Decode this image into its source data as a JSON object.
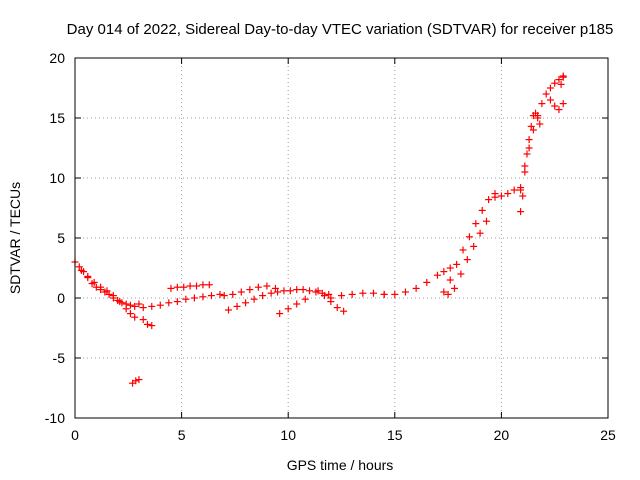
{
  "chart_data": {
    "type": "scatter",
    "title": "Day 014 of 2022, Sidereal Day-to-day VTEC variation (SDTVAR) for receiver p185",
    "xlabel": "GPS time / hours",
    "ylabel": "SDTVAR / TECUs",
    "xlim": [
      0,
      25
    ],
    "ylim": [
      -10,
      20
    ],
    "xticks": [
      0,
      5,
      10,
      15,
      20,
      25
    ],
    "yticks": [
      -10,
      -5,
      0,
      5,
      10,
      15,
      20
    ],
    "xtick_labels": [
      "0",
      "5",
      "10",
      "15",
      "20",
      "25"
    ],
    "ytick_labels": [
      "-10",
      "-5",
      "0",
      "5",
      "10",
      "15",
      "20"
    ],
    "grid": true,
    "marker": "plus",
    "color": "#ff0000",
    "series": [
      {
        "name": "SDTVAR",
        "x": [
          0.0,
          0.2,
          0.4,
          0.6,
          0.8,
          1.0,
          1.2,
          1.4,
          1.6,
          1.8,
          2.0,
          2.2,
          2.4,
          2.6,
          2.8,
          3.0,
          0.3,
          0.6,
          0.9,
          1.2,
          1.5,
          1.8,
          2.1,
          2.4,
          2.6,
          2.8,
          3.2,
          3.4,
          3.6,
          2.7,
          2.85,
          3.0,
          3.2,
          3.6,
          4.0,
          4.4,
          4.8,
          5.2,
          5.6,
          6.0,
          6.4,
          6.8,
          4.5,
          4.8,
          5.1,
          5.4,
          5.7,
          6.0,
          6.3,
          7.0,
          7.4,
          7.8,
          8.2,
          8.6,
          9.0,
          9.4,
          7.2,
          7.6,
          8.0,
          8.4,
          8.8,
          9.2,
          9.5,
          9.8,
          10.1,
          10.4,
          10.7,
          11.0,
          11.3,
          11.6,
          11.9,
          9.6,
          10.0,
          10.4,
          10.8,
          11.4,
          11.7,
          12.0,
          12.3,
          12.6,
          12.0,
          12.5,
          13.0,
          13.5,
          14.0,
          14.5,
          14.5,
          15.0,
          15.5,
          16.0,
          16.5,
          17.0,
          17.3,
          17.6,
          17.3,
          17.5,
          17.6,
          17.9,
          18.2,
          18.5,
          18.8,
          19.1,
          19.4,
          19.7,
          17.8,
          18.1,
          18.4,
          18.7,
          19.0,
          19.3,
          19.7,
          20.0,
          20.3,
          20.6,
          20.9,
          20.9,
          21.0,
          21.1,
          21.2,
          21.3,
          21.4,
          21.5,
          21.6,
          21.7,
          21.8,
          20.9,
          21.1,
          21.3,
          21.5,
          21.7,
          21.9,
          22.1,
          22.3,
          22.5,
          22.7,
          22.9,
          22.3,
          22.5,
          22.7,
          22.9,
          22.8,
          22.9
        ],
        "y": [
          3.0,
          2.6,
          2.2,
          1.7,
          1.2,
          0.9,
          0.7,
          0.5,
          0.3,
          0.0,
          -0.2,
          -0.4,
          -0.5,
          -0.6,
          -0.7,
          -0.5,
          2.3,
          1.8,
          1.3,
          0.9,
          0.6,
          0.2,
          -0.3,
          -0.9,
          -1.3,
          -1.6,
          -1.8,
          -2.2,
          -2.3,
          -7.1,
          -6.9,
          -6.8,
          -0.8,
          -0.7,
          -0.6,
          -0.4,
          -0.3,
          -0.1,
          0.0,
          0.1,
          0.2,
          0.3,
          0.8,
          0.9,
          0.9,
          1.0,
          1.0,
          1.1,
          1.1,
          0.2,
          0.3,
          0.5,
          0.7,
          0.9,
          1.0,
          0.8,
          -1.0,
          -0.7,
          -0.4,
          -0.1,
          0.2,
          0.4,
          0.5,
          0.6,
          0.6,
          0.7,
          0.7,
          0.6,
          0.5,
          0.4,
          0.3,
          -1.3,
          -0.9,
          -0.5,
          -0.1,
          0.6,
          0.2,
          -0.3,
          -0.8,
          -1.1,
          0.0,
          0.2,
          0.3,
          0.4,
          0.4,
          0.3,
          0.3,
          0.3,
          0.5,
          0.8,
          1.3,
          1.9,
          2.2,
          2.5,
          0.5,
          0.3,
          1.5,
          2.8,
          4.0,
          5.1,
          6.2,
          7.3,
          8.2,
          8.7,
          0.8,
          2.0,
          3.2,
          4.3,
          5.4,
          6.4,
          8.4,
          8.5,
          8.7,
          9.0,
          9.2,
          7.2,
          8.5,
          10.5,
          12.0,
          13.2,
          14.3,
          15.2,
          15.4,
          15.0,
          14.5,
          9.0,
          11.0,
          12.5,
          14.0,
          15.2,
          16.2,
          17.0,
          17.5,
          17.9,
          18.2,
          18.5,
          16.5,
          16.0,
          15.7,
          16.2,
          17.8,
          18.4
        ]
      }
    ]
  }
}
